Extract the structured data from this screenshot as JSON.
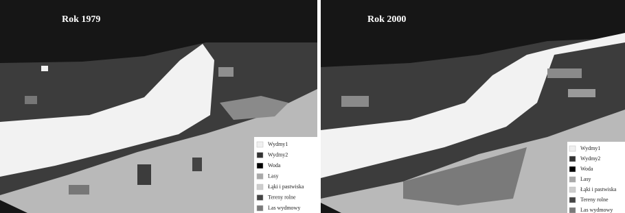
{
  "maps": [
    {
      "title": "Rok 1979",
      "legend": [
        "Wydmy1",
        "Wydmy2",
        "Woda",
        "Lasy",
        "Łąki i pastwiska",
        "Tereny rolne",
        "Las wydmowy"
      ]
    },
    {
      "title": "Rok 2000",
      "legend": [
        "Wydmy1",
        "Wydmy2",
        "Woda",
        "Lasy",
        "Łąki i pastwiska",
        "Tereny rolne",
        "Las wydmowy"
      ]
    }
  ]
}
